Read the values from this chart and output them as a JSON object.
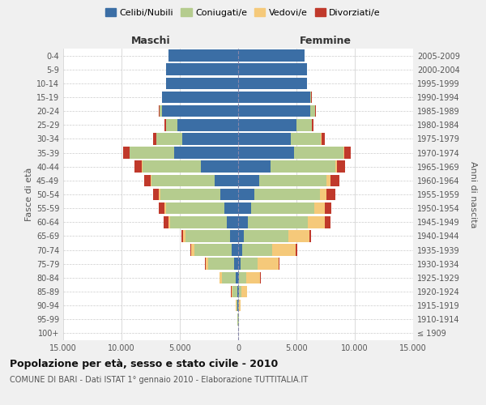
{
  "age_groups": [
    "100+",
    "95-99",
    "90-94",
    "85-89",
    "80-84",
    "75-79",
    "70-74",
    "65-69",
    "60-64",
    "55-59",
    "50-54",
    "45-49",
    "40-44",
    "35-39",
    "30-34",
    "25-29",
    "20-24",
    "15-19",
    "10-14",
    "5-9",
    "0-4"
  ],
  "birth_years": [
    "≤ 1909",
    "1910-1914",
    "1915-1919",
    "1920-1924",
    "1925-1929",
    "1930-1934",
    "1935-1939",
    "1940-1944",
    "1945-1949",
    "1950-1954",
    "1955-1959",
    "1960-1964",
    "1965-1969",
    "1970-1974",
    "1975-1979",
    "1980-1984",
    "1985-1989",
    "1990-1994",
    "1995-1999",
    "2000-2004",
    "2005-2009"
  ],
  "males": {
    "celibi": [
      10,
      20,
      50,
      80,
      200,
      350,
      550,
      700,
      1000,
      1200,
      1500,
      2000,
      3200,
      5500,
      4800,
      5200,
      6500,
      6500,
      6200,
      6200,
      6000
    ],
    "coniugati": [
      10,
      30,
      100,
      400,
      1200,
      2200,
      3200,
      3800,
      4800,
      5000,
      5200,
      5400,
      5000,
      3800,
      2200,
      1000,
      250,
      50,
      5,
      0,
      0
    ],
    "vedovi": [
      5,
      10,
      30,
      100,
      200,
      250,
      300,
      250,
      200,
      150,
      100,
      80,
      60,
      40,
      20,
      10,
      5,
      0,
      0,
      0,
      0
    ],
    "divorziati": [
      2,
      5,
      10,
      20,
      30,
      50,
      80,
      120,
      400,
      450,
      500,
      550,
      600,
      500,
      300,
      100,
      30,
      5,
      0,
      0,
      0
    ]
  },
  "females": {
    "nubili": [
      5,
      15,
      30,
      60,
      100,
      200,
      350,
      500,
      800,
      1100,
      1400,
      1800,
      2800,
      4800,
      4500,
      5000,
      6200,
      6200,
      5900,
      5900,
      5700
    ],
    "coniugate": [
      10,
      20,
      60,
      200,
      600,
      1500,
      2600,
      3800,
      5200,
      5400,
      5600,
      5800,
      5500,
      4200,
      2600,
      1300,
      400,
      80,
      10,
      0,
      0
    ],
    "vedove": [
      10,
      30,
      100,
      500,
      1200,
      1800,
      2000,
      1800,
      1400,
      900,
      600,
      350,
      200,
      100,
      50,
      20,
      5,
      0,
      0,
      0,
      0
    ],
    "divorziate": [
      2,
      5,
      10,
      20,
      30,
      60,
      100,
      150,
      500,
      600,
      700,
      700,
      700,
      550,
      300,
      120,
      40,
      8,
      0,
      0,
      0
    ]
  },
  "colors": {
    "celibi": "#3b6ea5",
    "coniugati": "#b5cc8e",
    "vedovi": "#f5c97a",
    "divorziati": "#c0392b"
  },
  "xlim": 15000,
  "xtick_labels": [
    "15.000",
    "10.000",
    "5.000",
    "0",
    "5.000",
    "10.000",
    "15.000"
  ],
  "title_main": "Popolazione per età, sesso e stato civile - 2010",
  "title_sub": "COMUNE DI BARI - Dati ISTAT 1° gennaio 2010 - Elaborazione TUTTITALIA.IT",
  "legend_labels": [
    "Celibi/Nubili",
    "Coniugati/e",
    "Vedovi/e",
    "Divorziati/e"
  ],
  "xlabel_left": "Maschi",
  "xlabel_right": "Femmine",
  "ylabel_left": "Fasce di età",
  "ylabel_right": "Anni di nascita",
  "background_color": "#f0f0f0",
  "plot_bg_color": "#ffffff",
  "grid_color": "#cccccc"
}
